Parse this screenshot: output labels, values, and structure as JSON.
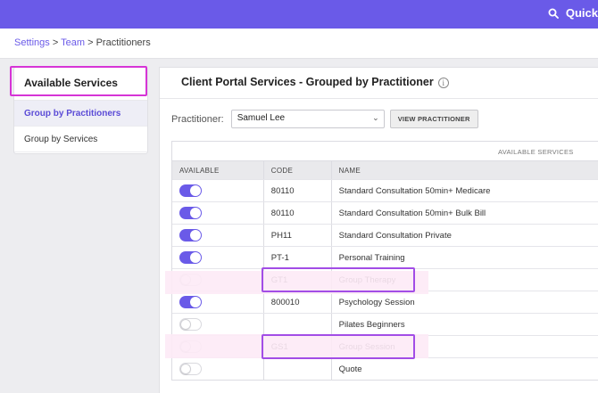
{
  "topbar": {
    "search_label": "Quick",
    "search_icon": "search-icon"
  },
  "breadcrumb": {
    "items": [
      "Settings",
      "Team"
    ],
    "separator": ">",
    "current": "Practitioners"
  },
  "sidebar": {
    "title": "Available Services",
    "items": [
      {
        "label": "Group by Practitioners",
        "active": true
      },
      {
        "label": "Group by Services",
        "active": false
      }
    ]
  },
  "main": {
    "title": "Client Portal Services - Grouped by Practitioner",
    "practitioner_label": "Practitioner:",
    "practitioner_value": "Samuel Lee",
    "view_button": "VIEW PRACTITIONER",
    "table": {
      "group_header": "AVAILABLE SERVICES",
      "columns": [
        "AVAILABLE",
        "CODE",
        "NAME"
      ],
      "rows": [
        {
          "available": true,
          "code": "80110",
          "name": "Standard Consultation 50min+ Medicare"
        },
        {
          "available": true,
          "code": "80110",
          "name": "Standard Consultation 50min+ Bulk Bill"
        },
        {
          "available": true,
          "code": "PH11",
          "name": "Standard Consultation Private"
        },
        {
          "available": true,
          "code": "PT-1",
          "name": "Personal Training"
        },
        {
          "available": false,
          "code": "GT1",
          "name": "Group Therapy"
        },
        {
          "available": true,
          "code": "800010",
          "name": "Psychology Session"
        },
        {
          "available": false,
          "code": "",
          "name": "Pilates Beginners"
        },
        {
          "available": false,
          "code": "GS1",
          "name": "Group Session"
        },
        {
          "available": false,
          "code": "",
          "name": "Quote"
        }
      ]
    }
  },
  "colors": {
    "accent": "#6a5ae8",
    "highlight": "#a24de6",
    "sidebar_highlight": "#d634d6"
  }
}
